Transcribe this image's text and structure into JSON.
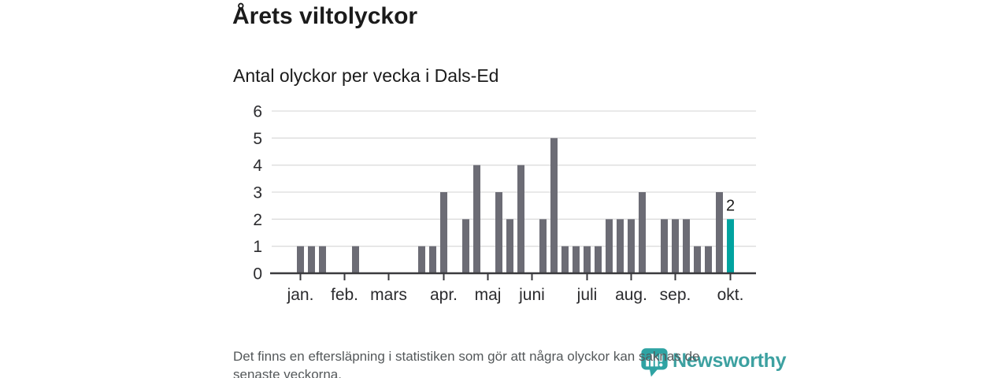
{
  "page": {
    "title": "Årets viltolyckor",
    "subtitle": "Antal olyckor per vecka i Dals-Ed"
  },
  "footer": {
    "lines": [
      "Det finns en eftersläpning i statistiken som gör att några olyckor kan saknas de",
      "senaste veckorna."
    ]
  },
  "branding": {
    "name": "Newsworthy",
    "icon": "newsworthy-bubble-barchart-icon",
    "text_color": "#3da1a1",
    "icon_color": "#2fa3a3"
  },
  "colors": {
    "bar": "#6c6c75",
    "bar_highlight": "#00a3a0",
    "grid": "#dcdcdc",
    "axis": "#3a3a3e",
    "tick_label": "#2b2b2e",
    "title": "#1b1b1b",
    "note": "#54585a"
  },
  "chart_data": {
    "type": "bar",
    "title": "Årets viltolyckor",
    "subtitle": "Antal olyckor per vecka i Dals-Ed",
    "x_unit": "vecka (januari–oktober)",
    "ylabel": "",
    "ylim": [
      0,
      6
    ],
    "y_ticks": [
      0,
      1,
      2,
      3,
      4,
      5,
      6
    ],
    "grid": true,
    "legend": "none",
    "weekly_values": [
      1,
      1,
      1,
      0,
      0,
      1,
      0,
      0,
      0,
      0,
      0,
      1,
      1,
      3,
      0,
      2,
      4,
      0,
      3,
      2,
      4,
      0,
      2,
      5,
      1,
      1,
      1,
      1,
      2,
      2,
      2,
      3,
      0,
      2,
      2,
      2,
      1,
      1,
      3,
      2
    ],
    "highlight_last_bar": true,
    "last_bar_label": "2",
    "month_ticks": [
      {
        "label": "jan.",
        "week_index": 0
      },
      {
        "label": "feb.",
        "week_index": 4
      },
      {
        "label": "mars",
        "week_index": 8
      },
      {
        "label": "apr.",
        "week_index": 13
      },
      {
        "label": "maj",
        "week_index": 17
      },
      {
        "label": "juni",
        "week_index": 21
      },
      {
        "label": "juli",
        "week_index": 26
      },
      {
        "label": "aug.",
        "week_index": 30
      },
      {
        "label": "sep.",
        "week_index": 34
      },
      {
        "label": "okt.",
        "week_index": 39
      }
    ]
  }
}
